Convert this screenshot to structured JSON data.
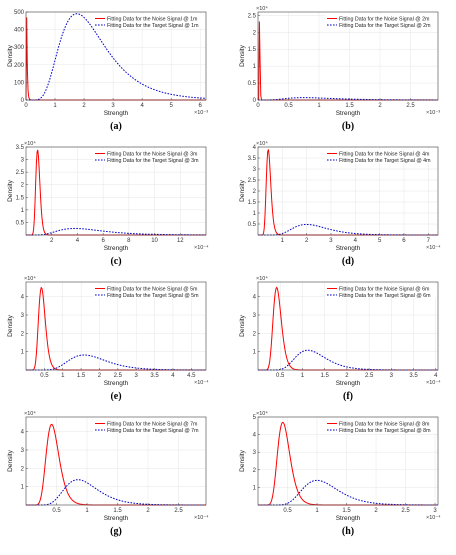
{
  "figure": {
    "caption_style": "(x)"
  },
  "chart_data": [
    {
      "type": "line",
      "caption": "(a)",
      "xlabel": "Strength",
      "ylabel": "Density",
      "x_exponent": "×10⁻³",
      "y_exponent": "",
      "xlim": [
        0,
        0.0062
      ],
      "ylim": [
        0,
        500
      ],
      "xticks": [
        0,
        0.001,
        0.002,
        0.003,
        0.004,
        0.005,
        0.006
      ],
      "xticklabels": [
        "0",
        "1",
        "2",
        "3",
        "4",
        "5",
        "6"
      ],
      "yticks": [
        0,
        100,
        200,
        300,
        400,
        500
      ],
      "yticklabels": [
        "0",
        "100",
        "200",
        "300",
        "400",
        "500"
      ],
      "series": [
        {
          "name": "Fitting Data for the Noise Signal @ 1m",
          "color": "#ff0000",
          "dash": "solid",
          "shape": "lognormal",
          "peak_x": 2e-05,
          "peak_y": 490,
          "sigma": 0.6
        },
        {
          "name": "Fitting Data for the Target Signal @ 1m",
          "color": "#0000cc",
          "dash": "dotted",
          "shape": "lognormal",
          "peak_x": 0.00175,
          "peak_y": 490,
          "sigma": 0.45
        }
      ]
    },
    {
      "type": "line",
      "caption": "(b)",
      "xlabel": "Strength",
      "ylabel": "Density",
      "x_exponent": "×10⁻³",
      "y_exponent": "×10⁴",
      "xlim": [
        0,
        0.00295
      ],
      "ylim": [
        0,
        26000
      ],
      "xticks": [
        0,
        0.0005,
        0.001,
        0.0015,
        0.002,
        0.0025
      ],
      "xticklabels": [
        "0",
        "0.5",
        "1",
        "1.5",
        "2",
        "2.5"
      ],
      "yticks": [
        0,
        5000,
        10000,
        15000,
        20000,
        25000
      ],
      "yticklabels": [
        "0",
        "0.5",
        "1",
        "1.5",
        "2",
        "2.5"
      ],
      "series": [
        {
          "name": "Fitting Data for the Noise Signal @ 2m",
          "color": "#ff0000",
          "dash": "solid",
          "shape": "lognormal",
          "peak_x": 2.5e-05,
          "peak_y": 25000,
          "sigma": 0.25
        },
        {
          "name": "Fitting Data for the Target Signal @ 2m",
          "color": "#0000cc",
          "dash": "dotted",
          "shape": "lognormal",
          "peak_x": 0.00075,
          "peak_y": 700,
          "sigma": 0.5
        }
      ]
    },
    {
      "type": "line",
      "caption": "(c)",
      "xlabel": "Strength",
      "ylabel": "Density",
      "x_exponent": "×10⁻⁴",
      "y_exponent": "×10⁴",
      "xlim": [
        0,
        0.0014
      ],
      "ylim": [
        0,
        35000
      ],
      "xticks": [
        0.0002,
        0.0004,
        0.0006,
        0.0008,
        0.001,
        0.0012
      ],
      "xticklabels": [
        "2",
        "4",
        "6",
        "8",
        "10",
        "12"
      ],
      "yticks": [
        5000,
        10000,
        15000,
        20000,
        25000,
        30000,
        35000
      ],
      "yticklabels": [
        "0.5",
        "1",
        "1.5",
        "2",
        "2.5",
        "3",
        "3.5"
      ],
      "series": [
        {
          "name": "Fitting Data for the Noise Signal @ 3m",
          "color": "#ff0000",
          "dash": "solid",
          "shape": "lognormal",
          "peak_x": 9e-05,
          "peak_y": 34000,
          "sigma": 0.18
        },
        {
          "name": "Fitting Data for the Target Signal @ 3m",
          "color": "#0000cc",
          "dash": "dotted",
          "shape": "lognormal",
          "peak_x": 0.00038,
          "peak_y": 2600,
          "sigma": 0.45
        }
      ]
    },
    {
      "type": "line",
      "caption": "(d)",
      "xlabel": "Strength",
      "ylabel": "Density",
      "x_exponent": "×10⁻⁴",
      "y_exponent": "×10⁴",
      "xlim": [
        0,
        0.00074
      ],
      "ylim": [
        0,
        40000
      ],
      "xticks": [
        0.0001,
        0.0002,
        0.0003,
        0.0004,
        0.0005,
        0.0006,
        0.0007
      ],
      "xticklabels": [
        "1",
        "2",
        "3",
        "4",
        "5",
        "6",
        "7"
      ],
      "yticks": [
        5000,
        10000,
        15000,
        20000,
        25000,
        30000,
        35000,
        40000
      ],
      "yticklabels": [
        "0.5",
        "1",
        "1.5",
        "2",
        "2.5",
        "3",
        "3.5",
        "4"
      ],
      "series": [
        {
          "name": "Fitting Data for the Noise Signal @ 4m",
          "color": "#ff0000",
          "dash": "solid",
          "shape": "lognormal",
          "peak_x": 4.2e-05,
          "peak_y": 39000,
          "sigma": 0.22
        },
        {
          "name": "Fitting Data for the Target Signal @ 4m",
          "color": "#0000cc",
          "dash": "dotted",
          "shape": "lognormal",
          "peak_x": 0.0002,
          "peak_y": 4800,
          "sigma": 0.35
        }
      ]
    },
    {
      "type": "line",
      "caption": "(e)",
      "xlabel": "Strength",
      "ylabel": "Density",
      "x_exponent": "×10⁻⁴",
      "y_exponent": "×10⁴",
      "xlim": [
        0,
        0.00049
      ],
      "ylim": [
        0,
        48000
      ],
      "xticks": [
        5e-05,
        0.0001,
        0.00015,
        0.0002,
        0.00025,
        0.0003,
        0.00035,
        0.0004,
        0.00045
      ],
      "xticklabels": [
        "0.5",
        "1",
        "1.5",
        "2",
        "2.5",
        "3",
        "3.5",
        "4",
        "4.5"
      ],
      "yticks": [
        10000,
        20000,
        30000,
        40000
      ],
      "yticklabels": [
        "1",
        "2",
        "3",
        "4"
      ],
      "series": [
        {
          "name": "Fitting Data for the Noise Signal @ 5m",
          "color": "#ff0000",
          "dash": "solid",
          "shape": "lognormal",
          "peak_x": 4.2e-05,
          "peak_y": 45000,
          "sigma": 0.22
        },
        {
          "name": "Fitting Data for the Target Signal @ 5m",
          "color": "#0000cc",
          "dash": "dotted",
          "shape": "lognormal",
          "peak_x": 0.000158,
          "peak_y": 8200,
          "sigma": 0.32
        }
      ]
    },
    {
      "type": "line",
      "caption": "(f)",
      "xlabel": "Strength",
      "ylabel": "Density",
      "x_exponent": "×10⁻⁴",
      "y_exponent": "×10⁴",
      "xlim": [
        0,
        0.000405
      ],
      "ylim": [
        0,
        48000
      ],
      "xticks": [
        5e-05,
        0.0001,
        0.00015,
        0.0002,
        0.00025,
        0.0003,
        0.00035,
        0.0004
      ],
      "xticklabels": [
        "0.5",
        "1",
        "1.5",
        "2",
        "2.5",
        "3",
        "3.5",
        "4"
      ],
      "yticks": [
        10000,
        20000,
        30000,
        40000
      ],
      "yticklabels": [
        "1",
        "2",
        "3",
        "4"
      ],
      "series": [
        {
          "name": "Fitting Data for the Noise Signal @ 6m",
          "color": "#ff0000",
          "dash": "solid",
          "shape": "lognormal",
          "peak_x": 4.2e-05,
          "peak_y": 45000,
          "sigma": 0.22
        },
        {
          "name": "Fitting Data for the Target Signal @ 6m",
          "color": "#0000cc",
          "dash": "dotted",
          "shape": "lognormal",
          "peak_x": 0.000112,
          "peak_y": 10800,
          "sigma": 0.3
        }
      ]
    },
    {
      "type": "line",
      "caption": "(g)",
      "xlabel": "Strength",
      "ylabel": "Density",
      "x_exponent": "×10⁻⁴",
      "y_exponent": "×10⁴",
      "xlim": [
        0,
        0.000295
      ],
      "ylim": [
        0,
        48000
      ],
      "xticks": [
        5e-05,
        0.0001,
        0.00015,
        0.0002,
        0.00025
      ],
      "xticklabels": [
        "0.5",
        "1",
        "1.5",
        "2",
        "2.5"
      ],
      "yticks": [
        10000,
        20000,
        30000,
        40000
      ],
      "yticklabels": [
        "1",
        "2",
        "3",
        "4"
      ],
      "series": [
        {
          "name": "Fitting Data for the Noise Signal @ 7m",
          "color": "#ff0000",
          "dash": "solid",
          "shape": "lognormal",
          "peak_x": 4.2e-05,
          "peak_y": 44000,
          "sigma": 0.25
        },
        {
          "name": "Fitting Data for the Target Signal @ 7m",
          "color": "#0000cc",
          "dash": "dotted",
          "shape": "lognormal",
          "peak_x": 8.5e-05,
          "peak_y": 13800,
          "sigma": 0.32
        }
      ]
    },
    {
      "type": "line",
      "caption": "(h)",
      "xlabel": "Strength",
      "ylabel": "Density",
      "x_exponent": "×10⁻⁴",
      "y_exponent": "×10⁴",
      "xlim": [
        0,
        0.000305
      ],
      "ylim": [
        0,
        50000
      ],
      "xticks": [
        5e-05,
        0.0001,
        0.00015,
        0.0002,
        0.00025,
        0.0003
      ],
      "xticklabels": [
        "0.5",
        "1",
        "1.5",
        "2",
        "2.5",
        "3"
      ],
      "yticks": [
        10000,
        20000,
        30000,
        40000,
        50000
      ],
      "yticklabels": [
        "1",
        "2",
        "3",
        "4",
        "5"
      ],
      "series": [
        {
          "name": "Fitting Data for the Noise Signal @ 8m",
          "color": "#ff0000",
          "dash": "solid",
          "shape": "lognormal",
          "peak_x": 4.2e-05,
          "peak_y": 47000,
          "sigma": 0.25
        },
        {
          "name": "Fitting Data for the Target Signal @ 8m",
          "color": "#0000cc",
          "dash": "dotted",
          "shape": "lognormal",
          "peak_x": 0.0001,
          "peak_y": 14000,
          "sigma": 0.3
        }
      ]
    }
  ]
}
